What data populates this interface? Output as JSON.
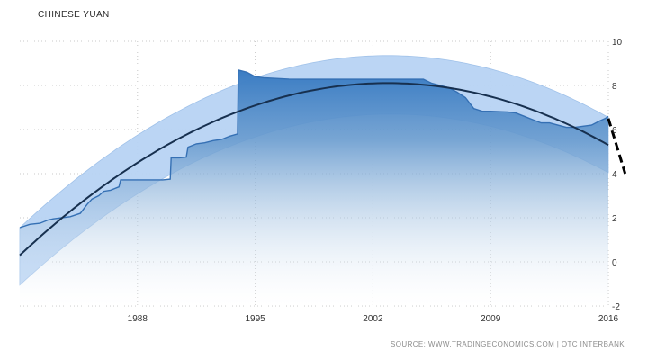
{
  "chart_data": {
    "type": "area",
    "title": "CHINESE YUAN",
    "source": "SOURCE: WWW.TRADINGECONOMICS.COM | OTC INTERBANK",
    "xlabel": "",
    "ylabel": "",
    "x_range": [
      1981,
      2016
    ],
    "ylim": [
      -2,
      10
    ],
    "x_ticks": [
      "1988",
      "1995",
      "2002",
      "2009",
      "2016"
    ],
    "y_ticks": [
      "10",
      "8",
      "6",
      "4",
      "2",
      "0",
      "-2"
    ],
    "grid": true,
    "legend": "none",
    "series": [
      {
        "x": [
          1981.0,
          1981.6,
          1982.2,
          1982.7,
          1983.0,
          1983.5,
          1984.0,
          1984.6,
          1985.0,
          1985.3,
          1985.7,
          1986.0,
          1986.4,
          1986.9,
          1987.0,
          1987.5,
          1988.0,
          1988.5,
          1989.0,
          1989.5,
          1989.95,
          1990.0,
          1990.5,
          1990.9,
          1991.0,
          1991.5,
          1992.0,
          1992.5,
          1993.0,
          1993.5,
          1993.95,
          1994.0,
          1994.5,
          1995.0,
          1995.5,
          1996.0,
          1997.0,
          1998.0,
          1999.0,
          2000.0,
          2001.0,
          2002.0,
          2003.0,
          2004.0,
          2005.0,
          2005.5,
          2006.0,
          2006.5,
          2007.0,
          2007.5,
          2008.0,
          2008.5,
          2009.0,
          2010.0,
          2010.5,
          2011.0,
          2011.5,
          2012.0,
          2012.5,
          2013.0,
          2013.5,
          2014.0,
          2014.5,
          2015.0,
          2015.5,
          2015.8,
          2016.0
        ],
        "values": [
          1.55,
          1.7,
          1.75,
          1.9,
          1.95,
          2.0,
          2.05,
          2.2,
          2.6,
          2.85,
          3.0,
          3.2,
          3.25,
          3.4,
          3.72,
          3.72,
          3.72,
          3.72,
          3.72,
          3.72,
          3.75,
          4.72,
          4.72,
          4.75,
          5.2,
          5.35,
          5.4,
          5.5,
          5.55,
          5.7,
          5.8,
          8.7,
          8.6,
          8.4,
          8.35,
          8.33,
          8.29,
          8.28,
          8.28,
          8.28,
          8.28,
          8.28,
          8.28,
          8.28,
          8.28,
          8.1,
          8.0,
          7.9,
          7.7,
          7.45,
          6.95,
          6.83,
          6.83,
          6.8,
          6.75,
          6.6,
          6.45,
          6.3,
          6.3,
          6.2,
          6.1,
          6.1,
          6.15,
          6.2,
          6.4,
          6.5,
          6.6
        ]
      }
    ],
    "trend": {
      "type": "quadratic",
      "x": [
        1981,
        2003.5,
        2016
      ],
      "values": [
        0.3,
        8.1,
        5.3
      ]
    },
    "band": {
      "upper": [
        1.55,
        9.35,
        6.55
      ],
      "lower": [
        -1.05,
        6.7,
        4.05
      ]
    },
    "forecast": {
      "x": [
        2016.0,
        2017.0
      ],
      "values": [
        6.5,
        4.0
      ]
    }
  }
}
